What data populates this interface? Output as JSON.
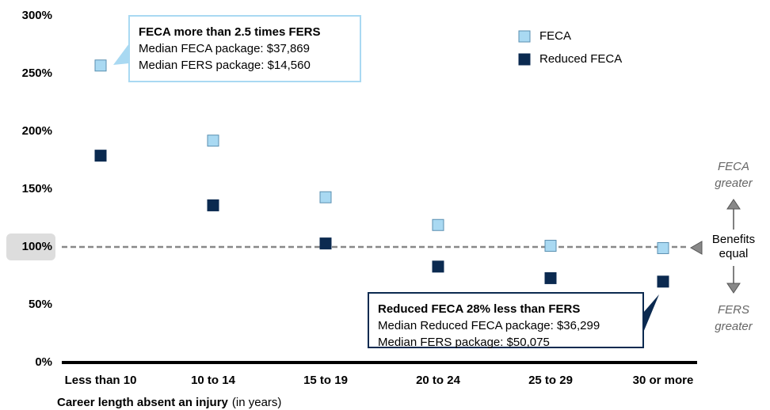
{
  "chart_data": {
    "type": "scatter",
    "categories": [
      "Less than 10",
      "10 to 14",
      "15 to 19",
      "20 to 24",
      "25 to 29",
      "30 or more"
    ],
    "series": [
      {
        "name": "FECA",
        "color": "#a9d9f2",
        "values": [
          257,
          192,
          143,
          119,
          101,
          99
        ]
      },
      {
        "name": "Reduced FECA",
        "color": "#0b2a50",
        "values": [
          179,
          136,
          103,
          83,
          73,
          70
        ]
      }
    ],
    "ylim": [
      0,
      300
    ],
    "yticks": [
      {
        "value": 0,
        "label": "0%"
      },
      {
        "value": 50,
        "label": "50%"
      },
      {
        "value": 100,
        "label": "100%"
      },
      {
        "value": 150,
        "label": "150%"
      },
      {
        "value": 200,
        "label": "200%"
      },
      {
        "value": 250,
        "label": "250%"
      },
      {
        "value": 300,
        "label": "300%"
      }
    ],
    "x_label": "Career length absent an injury",
    "x_label_note": "(in years)",
    "reference_line": {
      "value": 100,
      "label_lines": [
        "Benefits",
        "equal"
      ],
      "above": [
        "FECA",
        "greater"
      ],
      "below": [
        "FERS",
        "greater"
      ]
    },
    "annotations": [
      {
        "lines": [
          "FECA more than 2.5 times FERS",
          "Median FECA package: $37,869",
          "Median FERS package: $14,560"
        ]
      },
      {
        "lines": [
          "Reduced FECA 28% less than FERS",
          "Median Reduced FECA package: $36,299",
          "Median FERS package: $50,075"
        ]
      }
    ]
  }
}
